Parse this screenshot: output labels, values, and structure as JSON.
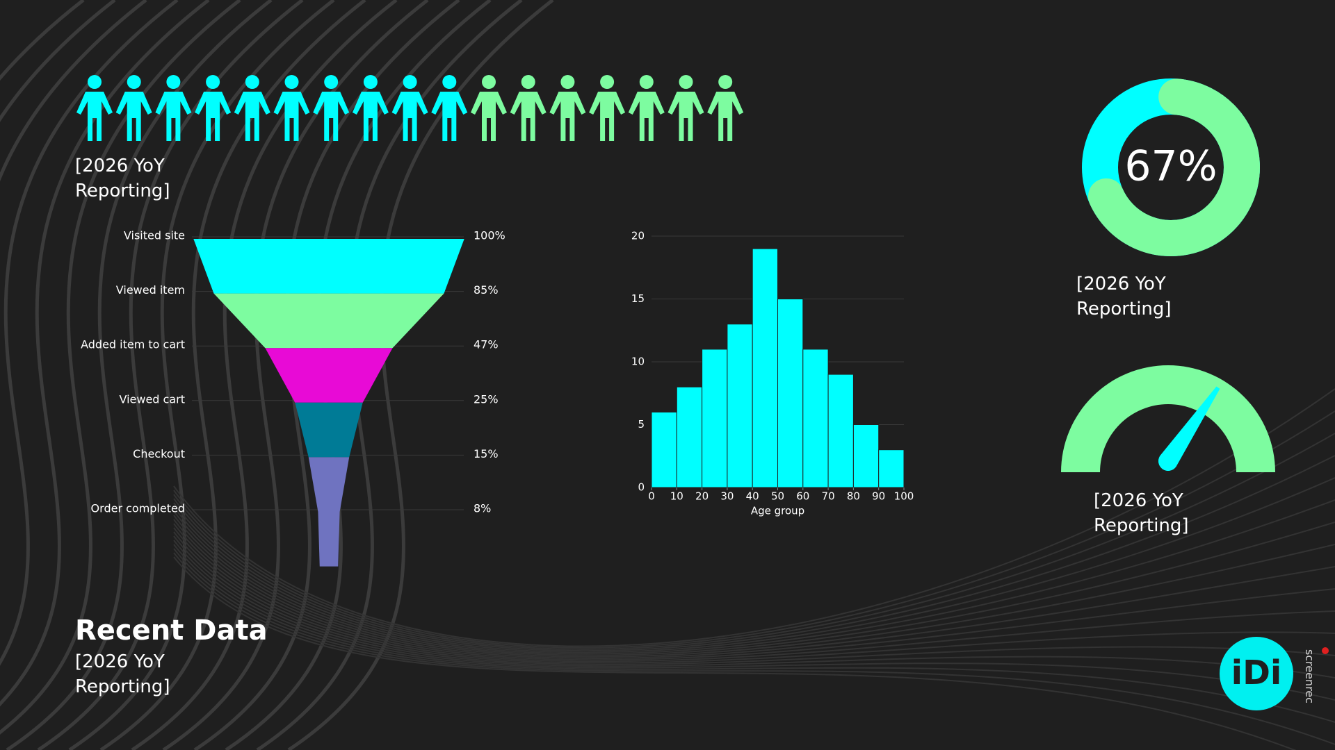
{
  "chart_data": [
    {
      "type": "pictogram",
      "values": [
        10,
        7
      ],
      "colors": [
        "#00ffff",
        "#7dfca0"
      ],
      "caption": "[2026 YoY Reporting]"
    },
    {
      "type": "funnel",
      "categories": [
        "Visited site",
        "Viewed item",
        "Added item to cart",
        "Viewed cart",
        "Checkout",
        "Order completed"
      ],
      "values": [
        100,
        85,
        47,
        25,
        15,
        8
      ],
      "value_labels": [
        "100%",
        "85%",
        "47%",
        "25%",
        "15%",
        "8%"
      ],
      "colors": [
        "#00ffff",
        "#7dfca0",
        "#e80ad6",
        "#007b96",
        "#6f73c0",
        "#6f73c0"
      ]
    },
    {
      "type": "histogram",
      "bins": [
        0,
        10,
        20,
        30,
        40,
        50,
        60,
        70,
        80,
        90,
        100
      ],
      "values": [
        6,
        8,
        11,
        13,
        19,
        15,
        11,
        9,
        5,
        3
      ],
      "color": "#00ffff",
      "xlabel": "Age group",
      "xlim": [
        0,
        100
      ],
      "xticks": [
        0,
        10,
        20,
        30,
        40,
        50,
        60,
        70,
        80,
        90,
        100
      ],
      "ylim": [
        0,
        20
      ],
      "yticks": [
        0,
        5,
        10,
        15,
        20
      ],
      "grid": true
    },
    {
      "type": "donut",
      "value": 67,
      "value_label": "67%",
      "range": [
        0,
        100
      ],
      "colors": [
        "#7dfca0",
        "#00ffff"
      ],
      "caption": "[2026 YoY Reporting]"
    },
    {
      "type": "gauge",
      "value": 69,
      "range": [
        0,
        100
      ],
      "colors": [
        "#7dfca0",
        "#00ffff"
      ],
      "caption": "[2026 YoY Reporting]"
    }
  ],
  "title": "Recent Data",
  "subtitle": "[2026 YoY Reporting]",
  "logo": "iDi",
  "watermark": "screenrec"
}
